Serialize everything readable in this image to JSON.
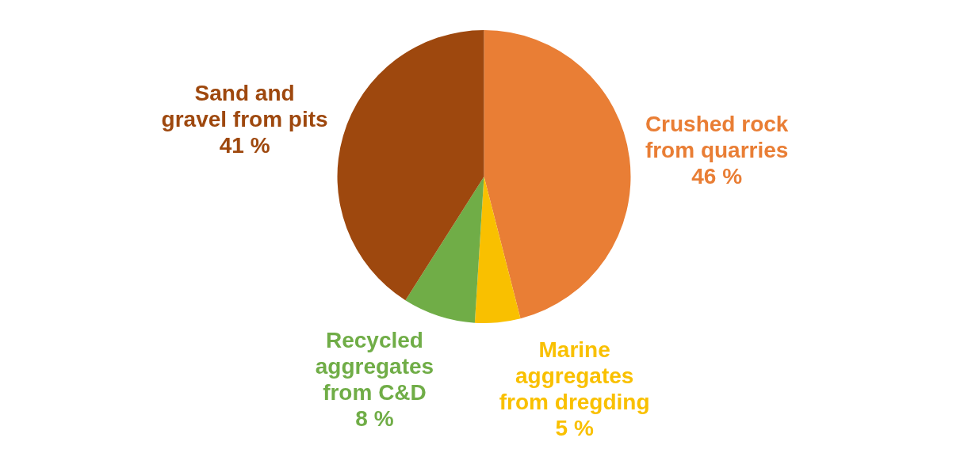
{
  "chart_data": {
    "type": "pie",
    "categories": [
      "Crushed rock from quarries",
      "Marine aggregates from dregding",
      "Recycled aggregates from C&D",
      "Sand and gravel from pits"
    ],
    "values": [
      46,
      5,
      8,
      41
    ],
    "colors": [
      "#e97e35",
      "#f9c000",
      "#70ad47",
      "#9e480e"
    ],
    "value_labels": [
      "46 %",
      "5 %",
      "8 %",
      "41 %"
    ],
    "legend": false
  }
}
